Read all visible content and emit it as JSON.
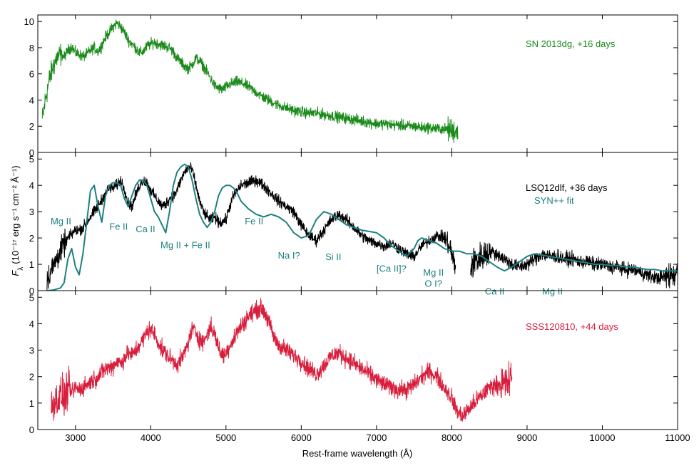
{
  "chart_data": {
    "type": "line",
    "xlabel": "Rest-frame wavelength (Å)",
    "ylabel": {
      "main": "F",
      "sub": "λ",
      "units": "(10⁻¹⁷ erg s⁻¹ cm⁻² Å⁻¹)"
    },
    "xlim": [
      2500,
      11000
    ],
    "xticks": [
      3000,
      4000,
      5000,
      6000,
      7000,
      8000,
      9000,
      10000,
      11000
    ],
    "tick_direction": "in",
    "grid": false,
    "panels": [
      {
        "id": "top",
        "ylim": [
          0,
          10.5
        ],
        "yticks": [
          0,
          2,
          4,
          6,
          8,
          10
        ],
        "label": {
          "text": "SN 2013dg, +16 days",
          "color": "#1a8a1a"
        },
        "series": [
          {
            "name": "SN 2013dg, +16 days",
            "color": "#1a8a1a",
            "x": [
              2560,
              2600,
              2650,
              2700,
              2750,
              2800,
              2850,
              2900,
              2950,
              3000,
              3050,
              3100,
              3150,
              3200,
              3250,
              3300,
              3350,
              3400,
              3450,
              3500,
              3550,
              3600,
              3650,
              3700,
              3750,
              3800,
              3850,
              3900,
              3950,
              4000,
              4050,
              4100,
              4150,
              4200,
              4250,
              4300,
              4350,
              4400,
              4450,
              4500,
              4550,
              4600,
              4650,
              4700,
              4750,
              4800,
              4850,
              4900,
              4950,
              5000,
              5050,
              5100,
              5150,
              5200,
              5250,
              5300,
              5350,
              5400,
              5450,
              5500,
              5600,
              5700,
              5800,
              5900,
              6000,
              6100,
              6200,
              6300,
              6400,
              6500,
              6600,
              6700,
              6800,
              6900,
              7000,
              7100,
              7200,
              7300,
              7400,
              7500,
              7600,
              7700,
              7800,
              7900,
              8000,
              8080
            ],
            "y": [
              2.5,
              4.0,
              5.5,
              6.5,
              7.2,
              7.5,
              7.3,
              7.8,
              8.1,
              7.6,
              7.5,
              7.3,
              7.5,
              7.8,
              8.0,
              7.7,
              8.2,
              8.8,
              9.2,
              9.6,
              9.9,
              9.6,
              9.2,
              8.6,
              8.3,
              8.0,
              7.6,
              7.7,
              8.1,
              8.3,
              8.4,
              8.3,
              8.2,
              8.1,
              8.0,
              7.7,
              7.2,
              6.9,
              6.6,
              6.4,
              6.7,
              7.2,
              7.0,
              6.6,
              6.1,
              5.6,
              5.1,
              4.9,
              4.8,
              5.0,
              5.2,
              5.3,
              5.4,
              5.3,
              5.2,
              5.0,
              4.8,
              4.6,
              4.4,
              4.2,
              3.9,
              3.6,
              3.4,
              3.2,
              3.1,
              3.0,
              3.0,
              2.9,
              2.8,
              2.7,
              2.6,
              2.5,
              2.4,
              2.3,
              2.2,
              2.2,
              2.1,
              2.1,
              2.0,
              2.0,
              1.9,
              1.9,
              1.8,
              1.8,
              1.7,
              1.6
            ],
            "noise": 0.35
          }
        ]
      },
      {
        "id": "middle",
        "ylim": [
          0,
          5.25
        ],
        "yticks": [
          0,
          1,
          2,
          3,
          4,
          5
        ],
        "label": {
          "text": "LSQ12dlf, +36 days",
          "color": "#000000"
        },
        "sublabel": {
          "text": "SYN++ fit",
          "color": "#1e8080"
        },
        "series": [
          {
            "name": "LSQ12dlf, +36 days",
            "color": "#000000",
            "segments": [
              {
                "x": [
                  2620,
                  2700,
                  2800,
                  2900,
                  3000,
                  3050,
                  3100,
                  3150,
                  3200,
                  3300,
                  3400,
                  3450,
                  3500,
                  3550,
                  3600,
                  3650,
                  3700,
                  3750,
                  3800,
                  3850,
                  3900,
                  3950,
                  4000,
                  4050,
                  4100,
                  4150,
                  4200,
                  4250,
                  4300,
                  4350,
                  4400,
                  4450,
                  4500,
                  4550,
                  4600,
                  4650,
                  4700,
                  4750,
                  4800,
                  4850,
                  4900,
                  4950,
                  5000,
                  5050,
                  5100,
                  5150,
                  5200,
                  5300,
                  5400,
                  5500,
                  5600,
                  5700,
                  5800,
                  5900,
                  6000,
                  6100,
                  6200,
                  6300,
                  6400,
                  6500,
                  6600,
                  6700,
                  6800,
                  6900,
                  7000,
                  7100,
                  7200,
                  7300,
                  7400,
                  7500,
                  7550,
                  7600,
                  7700,
                  7800,
                  7900,
                  7950,
                  8000,
                  8050
                ],
                "y": [
                  0.4,
                  0.9,
                  1.5,
                  2.0,
                  2.3,
                  2.3,
                  2.4,
                  2.6,
                  2.8,
                  3.2,
                  3.7,
                  3.9,
                  3.9,
                  4.0,
                  4.2,
                  3.9,
                  3.3,
                  3.2,
                  3.6,
                  4.0,
                  4.2,
                  4.1,
                  3.8,
                  3.6,
                  3.4,
                  3.2,
                  3.3,
                  3.5,
                  3.6,
                  3.8,
                  4.2,
                  4.5,
                  4.7,
                  4.6,
                  4.0,
                  3.4,
                  3.0,
                  2.8,
                  2.7,
                  2.8,
                  2.6,
                  2.6,
                  2.7,
                  3.2,
                  3.6,
                  3.8,
                  4.0,
                  4.1,
                  4.2,
                  4.0,
                  3.7,
                  3.4,
                  3.2,
                  3.0,
                  2.5,
                  2.1,
                  1.9,
                  2.3,
                  2.7,
                  2.9,
                  2.7,
                  2.4,
                  2.1,
                  1.9,
                  1.8,
                  1.7,
                  1.8,
                  1.6,
                  1.4,
                  1.3,
                  1.5,
                  1.7,
                  1.9,
                  2.1,
                  2.0,
                  1.8,
                  1.4,
                  0.8
                ],
                "noise": 0.18
              },
              {
                "x": [
                  8250,
                  8300,
                  8400,
                  8500,
                  8600,
                  8700,
                  8800,
                  8900,
                  9000,
                  9100,
                  9200,
                  9300,
                  9400,
                  9500,
                  9600,
                  9700,
                  9800,
                  9900,
                  10000,
                  10100,
                  10200,
                  10300,
                  10400,
                  10500,
                  10600,
                  10700,
                  10800,
                  10900,
                  11000
                ],
                "y": [
                  0.9,
                  1.1,
                  1.3,
                  1.5,
                  1.4,
                  1.2,
                  1.0,
                  0.9,
                  1.0,
                  1.2,
                  1.4,
                  1.3,
                  1.3,
                  1.2,
                  1.2,
                  1.1,
                  1.1,
                  1.0,
                  1.0,
                  0.9,
                  0.9,
                  0.8,
                  0.8,
                  0.7,
                  0.6,
                  0.5,
                  0.5,
                  0.6,
                  0.7
                ],
                "noise": 0.22
              }
            ]
          },
          {
            "name": "SYN++ fit",
            "color": "#1e8080",
            "smooth": true,
            "x": [
              2620,
              2700,
              2800,
              2850,
              2900,
              2950,
              3000,
              3050,
              3100,
              3150,
              3200,
              3250,
              3300,
              3350,
              3400,
              3450,
              3500,
              3550,
              3600,
              3650,
              3700,
              3750,
              3800,
              3850,
              3900,
              3950,
              4000,
              4050,
              4100,
              4150,
              4200,
              4250,
              4300,
              4350,
              4400,
              4450,
              4500,
              4550,
              4600,
              4650,
              4700,
              4750,
              4800,
              4850,
              4900,
              4950,
              5000,
              5050,
              5100,
              5150,
              5200,
              5300,
              5400,
              5500,
              5600,
              5700,
              5800,
              5900,
              6000,
              6100,
              6200,
              6300,
              6400,
              6500,
              6600,
              6700,
              6800,
              6900,
              7000,
              7100,
              7200,
              7300,
              7400,
              7500,
              7550,
              7600,
              7700,
              7800,
              7900,
              8000,
              8100,
              8200,
              8300,
              8400,
              8500,
              8600,
              8700,
              8800,
              8900,
              9000,
              9100,
              9200,
              9300,
              9400,
              9500,
              9600,
              9700,
              9800,
              9900,
              10000,
              10100,
              10200,
              10300,
              10400,
              10500,
              10600,
              10700,
              10800,
              10900,
              11000
            ],
            "y": [
              0.0,
              0.02,
              0.1,
              0.3,
              1.2,
              1.6,
              0.9,
              0.6,
              1.4,
              2.6,
              3.8,
              4.0,
              3.2,
              2.6,
              3.6,
              4.0,
              4.1,
              4.1,
              4.0,
              3.5,
              3.2,
              3.6,
              4.0,
              4.2,
              4.2,
              4.0,
              3.5,
              3.0,
              2.8,
              2.5,
              2.2,
              3.0,
              4.0,
              4.5,
              4.7,
              4.8,
              4.7,
              4.2,
              3.5,
              2.9,
              2.6,
              2.4,
              2.6,
              3.0,
              3.6,
              3.9,
              4.0,
              4.0,
              3.9,
              3.7,
              3.4,
              3.1,
              2.9,
              2.8,
              2.9,
              2.8,
              2.6,
              2.2,
              2.0,
              2.1,
              2.7,
              3.0,
              2.9,
              2.7,
              2.5,
              2.4,
              2.3,
              2.25,
              2.2,
              2.0,
              1.7,
              1.5,
              1.3,
              1.6,
              1.9,
              2.0,
              1.9,
              1.8,
              1.6,
              1.5,
              1.5,
              1.4,
              1.4,
              1.3,
              1.1,
              0.9,
              0.75,
              0.9,
              1.1,
              1.3,
              1.4,
              1.35,
              1.3,
              1.25,
              1.2,
              1.15,
              1.1,
              1.05,
              1.0,
              1.0,
              0.95,
              0.95,
              0.9,
              0.9,
              0.85,
              0.8,
              0.8,
              0.75,
              0.75,
              0.75
            ]
          }
        ],
        "annotations": [
          {
            "text": "Mg II",
            "x": 2670,
            "y": 2.65
          },
          {
            "text": "Fe II",
            "x": 3450,
            "y": 2.45
          },
          {
            "text": "Ca II",
            "x": 3800,
            "y": 2.35
          },
          {
            "text": "Mg II + Fe II",
            "x": 4130,
            "y": 1.75
          },
          {
            "text": "Fe II",
            "x": 5250,
            "y": 2.65
          },
          {
            "text": "Na I?",
            "x": 5690,
            "y": 1.35
          },
          {
            "text": "Si II",
            "x": 6320,
            "y": 1.3
          },
          {
            "text": "[Ca II]?",
            "x": 7000,
            "y": 0.85
          },
          {
            "text": "Mg II",
            "x": 7620,
            "y": 0.7
          },
          {
            "text": "O I?",
            "x": 7640,
            "y": 0.28
          },
          {
            "text": "Ca II",
            "x": 8440,
            "y": -0.02
          },
          {
            "text": "Mg II",
            "x": 9200,
            "y": -0.02
          }
        ]
      },
      {
        "id": "bottom",
        "ylim": [
          0,
          5.25
        ],
        "yticks": [
          0,
          1,
          2,
          3,
          4,
          5
        ],
        "label": {
          "text": "SSS120810, +44 days",
          "color": "#d81e3c"
        },
        "series": [
          {
            "name": "SSS120810, +44 days",
            "color": "#d81e3c",
            "x": [
              2680,
              2750,
              2800,
              2850,
              2900,
              2950,
              3000,
              3050,
              3100,
              3200,
              3300,
              3400,
              3500,
              3550,
              3600,
              3650,
              3700,
              3750,
              3800,
              3850,
              3900,
              3950,
              4000,
              4050,
              4100,
              4150,
              4200,
              4250,
              4300,
              4350,
              4400,
              4450,
              4500,
              4550,
              4600,
              4650,
              4700,
              4750,
              4800,
              4850,
              4900,
              4950,
              5000,
              5050,
              5100,
              5150,
              5200,
              5250,
              5300,
              5350,
              5400,
              5450,
              5500,
              5550,
              5600,
              5650,
              5700,
              5800,
              5900,
              6000,
              6100,
              6200,
              6300,
              6400,
              6500,
              6600,
              6700,
              6800,
              6900,
              7000,
              7100,
              7200,
              7300,
              7400,
              7500,
              7600,
              7700,
              7800,
              7900,
              8000,
              8050,
              8100,
              8150,
              8200,
              8300,
              8400,
              8500,
              8600,
              8700,
              8800
            ],
            "y": [
              1.0,
              1.1,
              1.3,
              1.2,
              1.5,
              1.4,
              1.6,
              1.5,
              1.6,
              1.8,
              2.0,
              2.3,
              2.4,
              2.6,
              2.5,
              2.7,
              2.9,
              2.8,
              3.0,
              3.2,
              3.4,
              3.7,
              3.8,
              3.6,
              3.3,
              3.0,
              2.9,
              2.7,
              2.6,
              2.5,
              2.6,
              2.9,
              3.3,
              3.8,
              3.7,
              3.4,
              3.3,
              3.6,
              3.9,
              3.6,
              3.1,
              2.8,
              2.9,
              3.2,
              3.4,
              3.7,
              3.9,
              4.1,
              4.3,
              4.4,
              4.5,
              4.6,
              4.5,
              4.2,
              3.8,
              3.4,
              3.2,
              3.0,
              2.8,
              2.6,
              2.3,
              2.1,
              2.4,
              2.8,
              2.9,
              2.7,
              2.5,
              2.3,
              2.1,
              1.9,
              1.7,
              1.6,
              1.5,
              1.5,
              1.7,
              2.0,
              2.2,
              2.0,
              1.6,
              1.2,
              0.8,
              0.6,
              0.5,
              0.7,
              1.0,
              1.3,
              1.6,
              1.7,
              1.7,
              1.9
            ],
            "noise": 0.28
          }
        ]
      }
    ]
  }
}
